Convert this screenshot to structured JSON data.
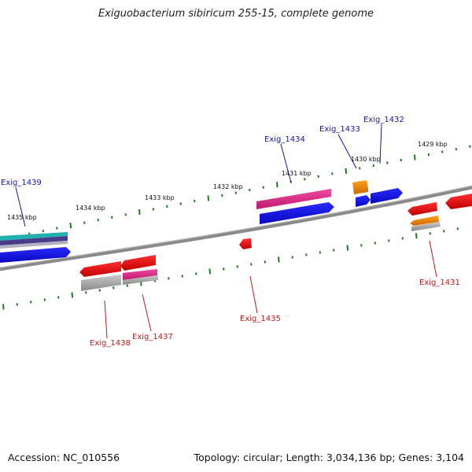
{
  "title": "Exiguobacterium sibiricum 255-15, complete genome",
  "footer": {
    "accession": "Accession: NC_010556",
    "topology": "Topology: circular; Length: 3,034,136 bp; Genes: 3,104"
  },
  "colors": {
    "backbone": "#8a8a8a",
    "tick": "#1f7a1f",
    "forward_label": "#1515a8",
    "reverse_label": "#c01818",
    "blue_gene": "#1010e0",
    "red_gene": "#e01010",
    "pink_gene": "#e8208a",
    "orange_gene": "#e88a00",
    "grey_gene": "#a8a8a8",
    "teal_gene": "#20b0b0",
    "purple_gene": "#4a3a8a"
  },
  "scale_labels": [
    "1435 kbp",
    "1434 kbp",
    "1433 kbp",
    "1432 kbp",
    "1431 kbp",
    "1430 kbp",
    "1429 kbp"
  ],
  "forward_gene_labels": [
    "Exig_1439",
    "Exig_1434",
    "Exig_1433",
    "Exig_1432"
  ],
  "reverse_gene_labels": [
    "Exig_1438",
    "Exig_1437",
    "Exig_1435",
    "Exig_1431"
  ]
}
